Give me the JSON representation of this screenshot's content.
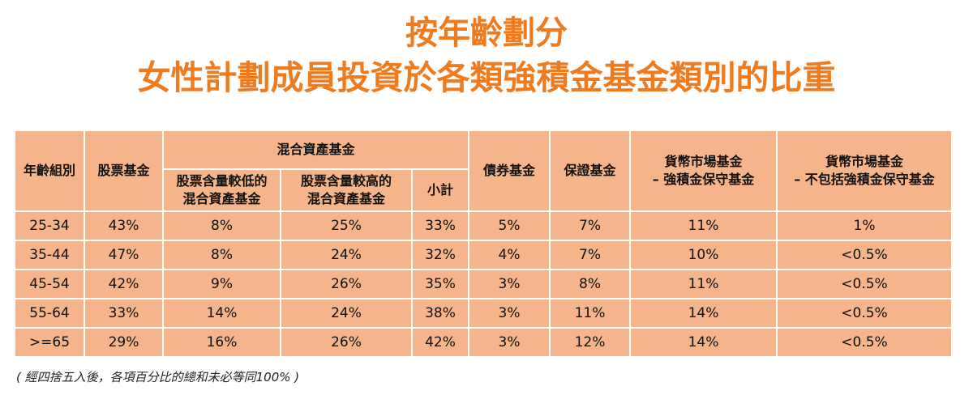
{
  "header": {
    "title_lines": [
      "按年齡劃分",
      "女性計劃成員投資於各類強積金基金類別的比重"
    ]
  },
  "table": {
    "top_headers": [
      "年齡組別",
      "股票基金",
      "混合資產基金",
      "債券基金",
      "保證基金",
      [
        "貨幣市場基金",
        "– 強積金保守基金"
      ],
      [
        "貨幣市場基金",
        "– 不包括強積金保守基金"
      ]
    ],
    "sub_headers": [
      [
        "股票含量較低的",
        "混合資產基金"
      ],
      [
        "股票含量較高的",
        "混合資產基金"
      ],
      "小計"
    ],
    "rows": [
      [
        "25-34",
        "43%",
        "8%",
        "25%",
        "33%",
        "5%",
        "7%",
        "11%",
        "1%"
      ],
      [
        "35-44",
        "47%",
        "8%",
        "24%",
        "32%",
        "4%",
        "7%",
        "10%",
        "<0.5%"
      ],
      [
        "45-54",
        "42%",
        "9%",
        "26%",
        "35%",
        "3%",
        "8%",
        "11%",
        "<0.5%"
      ],
      [
        "55-64",
        "33%",
        "14%",
        "24%",
        "38%",
        "3%",
        "11%",
        "14%",
        "<0.5%"
      ],
      [
        ">=65",
        "29%",
        "16%",
        "26%",
        "42%",
        "3%",
        "12%",
        "14%",
        "<0.5%"
      ]
    ]
  },
  "footnote": "( 經四捨五入後，各項百分比的總和未必等同100% )"
}
